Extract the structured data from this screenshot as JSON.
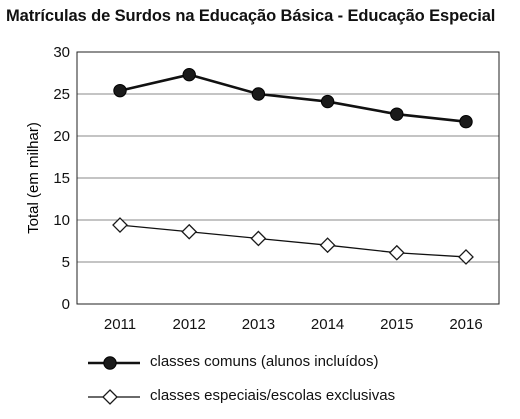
{
  "chart_data": {
    "type": "line",
    "title": "Matrículas de Surdos na Educação Básica - Educação Especial",
    "ylabel": "Total (em milhar)",
    "xlabel": "",
    "categories": [
      "2011",
      "2012",
      "2013",
      "2014",
      "2015",
      "2016"
    ],
    "y_ticks": [
      "0",
      "5",
      "10",
      "15",
      "20",
      "25",
      "30"
    ],
    "ylim": [
      0,
      30
    ],
    "grid": "horizontal",
    "legend_position": "bottom",
    "series": [
      {
        "name": "classes comuns (alunos incluídos)",
        "marker": "filled-circle",
        "color": "#111111",
        "values": [
          25.4,
          27.3,
          25.0,
          24.1,
          22.6,
          21.7
        ]
      },
      {
        "name": "classes especiais/escolas exclusivas",
        "marker": "open-diamond",
        "color": "#111111",
        "values": [
          9.4,
          8.6,
          7.8,
          7.0,
          6.1,
          5.6
        ]
      }
    ]
  }
}
